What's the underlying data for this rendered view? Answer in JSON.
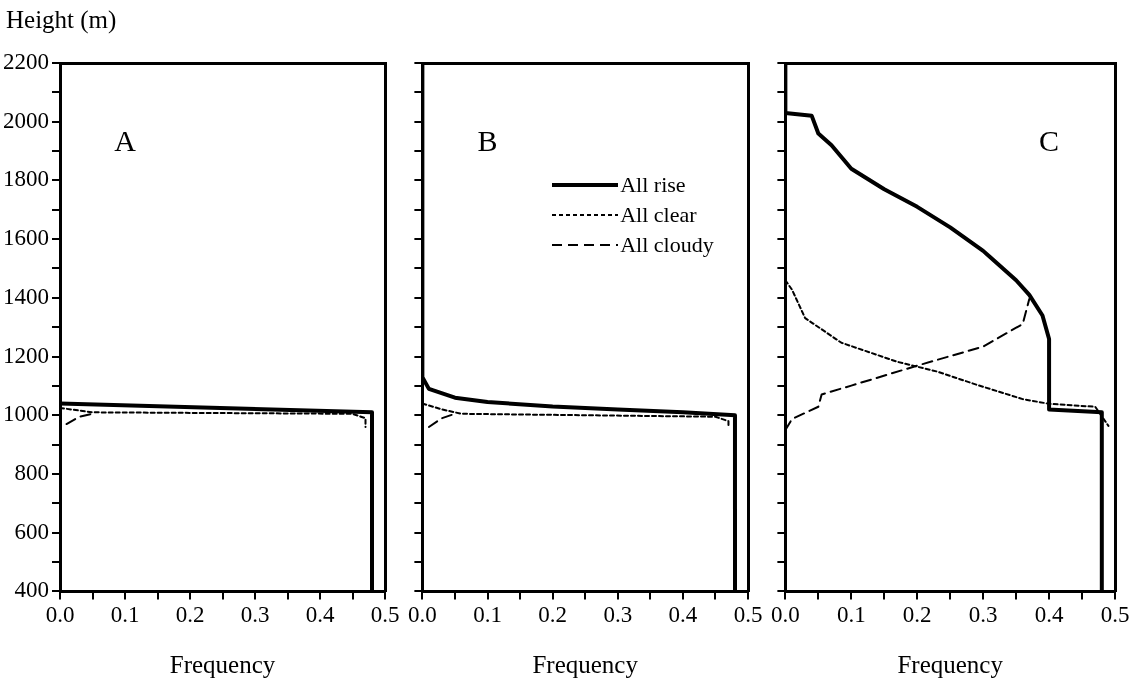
{
  "chart_data": [
    {
      "type": "line",
      "ylabel": "Height (m)",
      "xlabel": "Frequency",
      "annotations": [
        "A"
      ],
      "xlim": [
        0,
        0.5
      ],
      "ylim": [
        400,
        2200
      ],
      "xticks": [
        {
          "value": 0,
          "label": "0.0"
        },
        {
          "value": 0.05,
          "label": null
        },
        0.1,
        {
          "value": 0.15,
          "label": null
        },
        0.2,
        {
          "value": 0.25,
          "label": null
        },
        0.3,
        {
          "value": 0.35,
          "label": null
        },
        0.4,
        {
          "value": 0.45,
          "label": null
        },
        0.5
      ],
      "yticks": [
        400,
        {
          "value": 500,
          "label": null
        },
        600,
        {
          "value": 700,
          "label": null
        },
        800,
        {
          "value": 900,
          "label": null
        },
        1000,
        {
          "value": 1100,
          "label": null
        },
        1200,
        {
          "value": 1300,
          "label": null
        },
        1400,
        {
          "value": 1500,
          "label": null
        },
        1600,
        {
          "value": 1700,
          "label": null
        },
        1800,
        {
          "value": 1900,
          "label": null
        },
        2000,
        {
          "value": 2100,
          "label": null
        },
        2200
      ],
      "grid": false,
      "legend": false,
      "marker": "none",
      "series": [
        {
          "color": "#000000",
          "line_style": "solid",
          "x": [
            0,
            0.48,
            0.48
          ],
          "values": [
            1040,
            1010,
            400
          ]
        },
        {
          "color": "#000000",
          "line_style": "dotted",
          "x": [
            0,
            0.05,
            0.45,
            0.47,
            0.47
          ],
          "values": [
            1025,
            1010,
            1005,
            990,
            960
          ]
        },
        {
          "color": "#000000",
          "line_style": "dashed",
          "x": [
            0.01,
            0.03,
            0.05
          ],
          "values": [
            970,
            995,
            1005
          ]
        }
      ]
    },
    {
      "type": "line",
      "xlabel": "Frequency",
      "annotations": [
        "B"
      ],
      "xlim": [
        0,
        0.5
      ],
      "ylim": [
        400,
        2200
      ],
      "tick_labels": "x",
      "xticks": [
        {
          "value": 0,
          "label": "0.0"
        },
        {
          "value": 0.05,
          "label": null
        },
        0.1,
        {
          "value": 0.15,
          "label": null
        },
        0.2,
        {
          "value": 0.25,
          "label": null
        },
        0.3,
        {
          "value": 0.35,
          "label": null
        },
        0.4,
        {
          "value": 0.45,
          "label": null
        },
        0.5
      ],
      "yticks": [
        400,
        {
          "value": 500,
          "label": null
        },
        600,
        {
          "value": 700,
          "label": null
        },
        800,
        {
          "value": 900,
          "label": null
        },
        1000,
        {
          "value": 1100,
          "label": null
        },
        1200,
        {
          "value": 1300,
          "label": null
        },
        1400,
        {
          "value": 1500,
          "label": null
        },
        1600,
        {
          "value": 1700,
          "label": null
        },
        1800,
        {
          "value": 1900,
          "label": null
        },
        2000,
        {
          "value": 2100,
          "label": null
        },
        2200
      ],
      "grid": false,
      "legend": "top right",
      "marker": "none",
      "series": [
        {
          "name": "All rise",
          "color": "#000000",
          "line_style": "solid",
          "x": [
            0,
            0,
            0.01,
            0.05,
            0.1,
            0.2,
            0.3,
            0.4,
            0.48,
            0.48
          ],
          "values": [
            2200,
            1130,
            1090,
            1060,
            1045,
            1030,
            1020,
            1010,
            1000,
            400
          ]
        },
        {
          "name": "All clear",
          "color": "#000000",
          "line_style": "dotted",
          "x": [
            0,
            0.03,
            0.06,
            0.45,
            0.47,
            0.47
          ],
          "values": [
            1040,
            1020,
            1005,
            995,
            980,
            960
          ]
        },
        {
          "name": "All cloudy",
          "color": "#000000",
          "line_style": "dashed",
          "x": [
            0.01,
            0.03,
            0.05
          ],
          "values": [
            960,
            990,
            1005
          ]
        }
      ]
    },
    {
      "type": "line",
      "xlabel": "Frequency",
      "annotations": [
        "C"
      ],
      "xlim": [
        0,
        0.5
      ],
      "ylim": [
        400,
        2200
      ],
      "tick_labels": "x",
      "xticks": [
        {
          "value": 0,
          "label": "0.0"
        },
        {
          "value": 0.05,
          "label": null
        },
        0.1,
        {
          "value": 0.15,
          "label": null
        },
        0.2,
        {
          "value": 0.25,
          "label": null
        },
        0.3,
        {
          "value": 0.35,
          "label": null
        },
        0.4,
        {
          "value": 0.45,
          "label": null
        },
        0.5
      ],
      "yticks": [
        400,
        {
          "value": 500,
          "label": null
        },
        600,
        {
          "value": 700,
          "label": null
        },
        800,
        {
          "value": 900,
          "label": null
        },
        1000,
        {
          "value": 1100,
          "label": null
        },
        1200,
        {
          "value": 1300,
          "label": null
        },
        1400,
        {
          "value": 1500,
          "label": null
        },
        1600,
        {
          "value": 1700,
          "label": null
        },
        1800,
        {
          "value": 1900,
          "label": null
        },
        2000,
        {
          "value": 2100,
          "label": null
        },
        2200
      ],
      "grid": false,
      "legend": false,
      "marker": "none",
      "series": [
        {
          "color": "#000000",
          "line_style": "solid",
          "x": [
            0,
            0,
            0.04,
            0.05,
            0.07,
            0.1,
            0.15,
            0.2,
            0.25,
            0.3,
            0.35,
            0.37,
            0.39,
            0.4,
            0.4,
            0.48,
            0.48
          ],
          "values": [
            2200,
            2030,
            2020,
            1960,
            1920,
            1840,
            1770,
            1710,
            1640,
            1560,
            1460,
            1410,
            1340,
            1260,
            1020,
            1010,
            400
          ]
        },
        {
          "color": "#000000",
          "line_style": "dotted",
          "x": [
            0,
            0.01,
            0.03,
            0.085,
            0.17,
            0.23,
            0.29,
            0.36,
            0.4,
            0.47,
            0.49
          ],
          "values": [
            1460,
            1428,
            1331,
            1247,
            1182,
            1149,
            1104,
            1055,
            1039,
            1029,
            964
          ]
        },
        {
          "color": "#000000",
          "line_style": "dashed",
          "x": [
            0,
            0.01,
            0.05,
            0.055,
            0.1,
            0.2,
            0.3,
            0.36,
            0.37
          ],
          "values": [
            950,
            987,
            1029,
            1071,
            1101,
            1169,
            1234,
            1311,
            1396
          ]
        }
      ]
    }
  ]
}
